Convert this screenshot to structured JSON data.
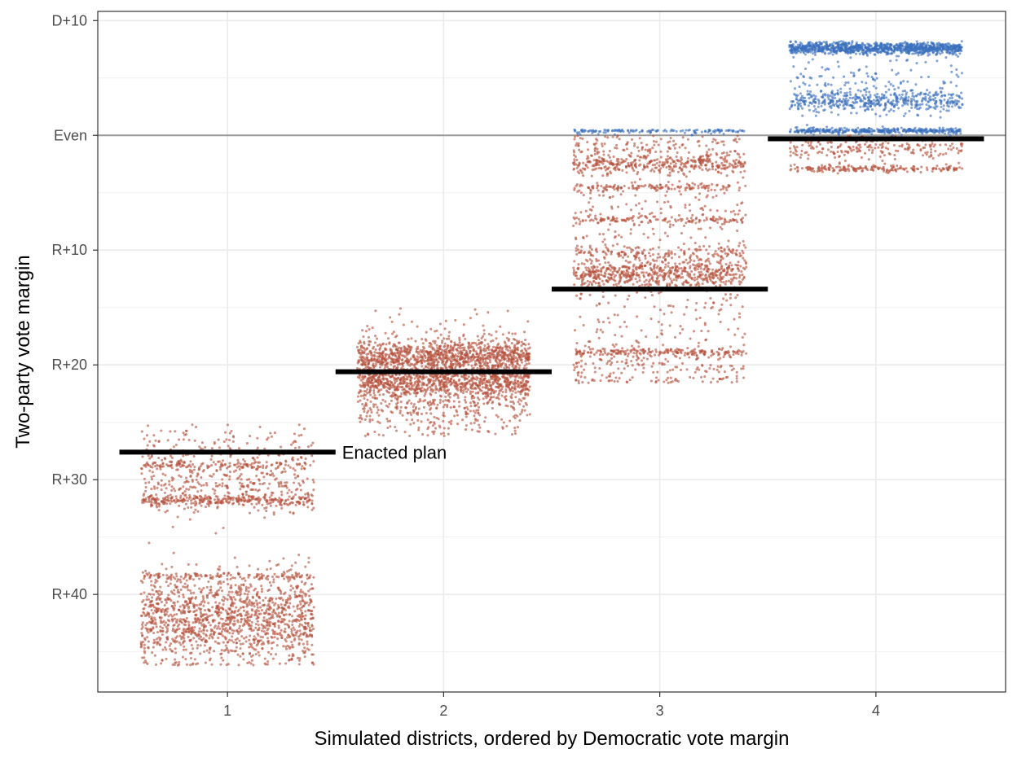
{
  "chart_data": {
    "type": "scatter",
    "title": "",
    "xlabel": "Simulated districts, ordered by Democratic vote margin",
    "ylabel": "Two-party vote margin",
    "x_ticks": [
      "1",
      "2",
      "3",
      "4"
    ],
    "y_ticks": [
      {
        "value": 10,
        "label": "D+10"
      },
      {
        "value": 0,
        "label": "Even"
      },
      {
        "value": -10,
        "label": "R+10"
      },
      {
        "value": -20,
        "label": "R+20"
      },
      {
        "value": -30,
        "label": "R+30"
      },
      {
        "value": -40,
        "label": "R+40"
      }
    ],
    "xlim": [
      0.4,
      4.6
    ],
    "ylim": [
      -48.5,
      10.8
    ],
    "grid": true,
    "reference_line": {
      "y": 0
    },
    "colors": {
      "republican": "#b5503c",
      "democratic": "#3a6fbd",
      "enacted": "#000000",
      "reference": "#999999"
    },
    "jitter_width": 0.4,
    "simulated_districts": [
      {
        "district": 1,
        "range": [
          -46.2,
          -21.8
        ],
        "clusters": [
          {
            "margin": -41.8,
            "spread": 1.8,
            "share": 0.5
          },
          {
            "margin": -31.8,
            "spread": 0.25,
            "share": 0.12
          },
          {
            "margin": -30.4,
            "spread": 1.6,
            "share": 0.14
          },
          {
            "margin": -28.8,
            "spread": 0.2,
            "share": 0.05
          },
          {
            "margin": -38.4,
            "spread": 0.15,
            "share": 0.05
          },
          {
            "margin": -44.0,
            "spread": 1.5,
            "share": 0.08
          },
          {
            "margin": -27.5,
            "spread": 1.2,
            "share": 0.06
          }
        ]
      },
      {
        "district": 2,
        "range": [
          -26.2,
          -14.8
        ],
        "clusters": [
          {
            "margin": -19.3,
            "spread": 0.7,
            "share": 0.35
          },
          {
            "margin": -21.6,
            "spread": 0.7,
            "share": 0.3
          },
          {
            "margin": -20.5,
            "spread": 2.0,
            "share": 0.25
          },
          {
            "margin": -24.0,
            "spread": 1.3,
            "share": 0.1
          }
        ]
      },
      {
        "district": 3,
        "range": [
          -21.6,
          0.5
        ],
        "clusters": [
          {
            "margin": -12.1,
            "spread": 0.6,
            "share": 0.25
          },
          {
            "margin": -2.5,
            "spread": 0.4,
            "share": 0.14
          },
          {
            "margin": -18.9,
            "spread": 0.15,
            "share": 0.08
          },
          {
            "margin": -20.3,
            "spread": 1.0,
            "share": 0.08
          },
          {
            "margin": -4.5,
            "spread": 0.15,
            "share": 0.05
          },
          {
            "margin": -7.4,
            "spread": 0.15,
            "share": 0.05
          },
          {
            "margin": -10.2,
            "spread": 0.3,
            "share": 0.06
          },
          {
            "margin": -6.5,
            "spread": 3.5,
            "share": 0.12
          },
          {
            "margin": -1.0,
            "spread": 1.0,
            "share": 0.08
          },
          {
            "margin": -16.0,
            "spread": 1.8,
            "share": 0.05
          },
          {
            "margin": 0.4,
            "spread": 0.05,
            "share": 0.04
          }
        ]
      },
      {
        "district": 4,
        "range": [
          -4.5,
          8.2
        ],
        "clusters": [
          {
            "margin": 7.6,
            "spread": 0.25,
            "share": 0.42
          },
          {
            "margin": 3.0,
            "spread": 0.5,
            "share": 0.2
          },
          {
            "margin": 0.4,
            "spread": 0.1,
            "share": 0.15
          },
          {
            "margin": -2.9,
            "spread": 0.15,
            "share": 0.08
          },
          {
            "margin": 5.0,
            "spread": 1.5,
            "share": 0.05
          },
          {
            "margin": -1.0,
            "spread": 0.6,
            "share": 0.1
          }
        ]
      }
    ],
    "enacted_plan": {
      "label": "Enacted plan",
      "values": [
        {
          "district": 1,
          "margin": -27.6
        },
        {
          "district": 2,
          "margin": -20.6
        },
        {
          "district": 3,
          "margin": -13.4
        },
        {
          "district": 4,
          "margin": -0.3
        }
      ]
    }
  }
}
